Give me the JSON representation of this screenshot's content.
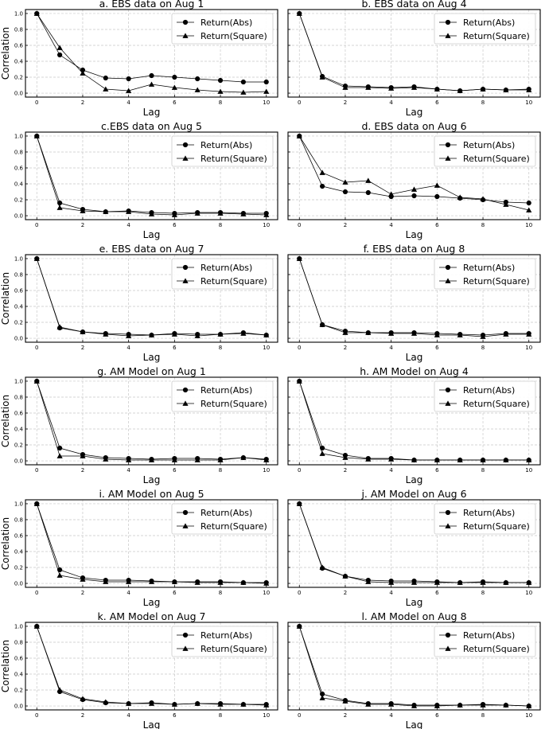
{
  "figure": {
    "x_tick_labels": [
      "0",
      "2",
      "4",
      "6",
      "8",
      "10"
    ],
    "y_tick_labels": [
      "0.0",
      "0.2",
      "0.4",
      "0.6",
      "0.8",
      "1.0"
    ]
  },
  "chart_data": [
    {
      "type": "line",
      "title": "a. EBS data on Aug 1",
      "xlabel": "Lag",
      "ylabel": "Correlation",
      "xlim": [
        0,
        10
      ],
      "ylim": [
        0,
        1
      ],
      "legend": "top-right",
      "x": [
        0,
        1,
        2,
        3,
        4,
        5,
        6,
        7,
        8,
        9,
        10
      ],
      "series": [
        {
          "name": "Return(Abs)",
          "marker": "circle",
          "values": [
            1.0,
            0.48,
            0.29,
            0.19,
            0.18,
            0.22,
            0.2,
            0.18,
            0.16,
            0.14,
            0.14
          ]
        },
        {
          "name": "Return(Square)",
          "marker": "triangle",
          "values": [
            1.0,
            0.57,
            0.25,
            0.05,
            0.03,
            0.11,
            0.07,
            0.04,
            0.02,
            0.01,
            0.02
          ]
        }
      ]
    },
    {
      "type": "line",
      "title": "b. EBS data on Aug 4",
      "xlabel": "Lag",
      "ylabel": "",
      "xlim": [
        0,
        10
      ],
      "ylim": [
        0,
        1
      ],
      "legend": "top-right",
      "x": [
        0,
        1,
        2,
        3,
        4,
        5,
        6,
        7,
        8,
        9,
        10
      ],
      "series": [
        {
          "name": "Return(Abs)",
          "marker": "circle",
          "values": [
            1.0,
            0.21,
            0.09,
            0.08,
            0.07,
            0.08,
            0.05,
            0.03,
            0.05,
            0.04,
            0.05
          ]
        },
        {
          "name": "Return(Square)",
          "marker": "triangle",
          "values": [
            1.0,
            0.2,
            0.07,
            0.07,
            0.06,
            0.07,
            0.05,
            0.03,
            0.05,
            0.04,
            0.04
          ]
        }
      ]
    },
    {
      "type": "line",
      "title": "c.EBS data on Aug 5",
      "xlabel": "Lag",
      "ylabel": "",
      "xlim": [
        0,
        10
      ],
      "ylim": [
        0,
        1
      ],
      "legend": "top-right",
      "x": [
        0,
        1,
        2,
        3,
        4,
        5,
        6,
        7,
        8,
        9,
        10
      ],
      "series": [
        {
          "name": "Return(Abs)",
          "marker": "circle",
          "values": [
            1.0,
            0.16,
            0.08,
            0.05,
            0.06,
            0.04,
            0.03,
            0.04,
            0.04,
            0.03,
            0.03
          ]
        },
        {
          "name": "Return(Square)",
          "marker": "triangle",
          "values": [
            1.0,
            0.1,
            0.06,
            0.05,
            0.05,
            0.02,
            0.01,
            0.03,
            0.03,
            0.02,
            0.01
          ]
        }
      ]
    },
    {
      "type": "line",
      "title": "d. EBS data on Aug 6",
      "xlabel": "Lag",
      "ylabel": "",
      "xlim": [
        0,
        10
      ],
      "ylim": [
        0,
        1
      ],
      "legend": "top-right",
      "x": [
        0,
        1,
        2,
        3,
        4,
        5,
        6,
        7,
        8,
        9,
        10
      ],
      "series": [
        {
          "name": "Return(Abs)",
          "marker": "circle",
          "values": [
            1.0,
            0.37,
            0.3,
            0.29,
            0.24,
            0.25,
            0.24,
            0.22,
            0.2,
            0.17,
            0.16
          ]
        },
        {
          "name": "Return(Square)",
          "marker": "triangle",
          "values": [
            1.0,
            0.54,
            0.42,
            0.44,
            0.27,
            0.33,
            0.38,
            0.23,
            0.21,
            0.14,
            0.07
          ]
        }
      ]
    },
    {
      "type": "line",
      "title": "e. EBS data on Aug 7",
      "xlabel": "Lag",
      "ylabel": "Correlation",
      "xlim": [
        0,
        10
      ],
      "ylim": [
        0,
        1
      ],
      "legend": "top-right",
      "x": [
        0,
        1,
        2,
        3,
        4,
        5,
        6,
        7,
        8,
        9,
        10
      ],
      "series": [
        {
          "name": "Return(Abs)",
          "marker": "circle",
          "values": [
            1.0,
            0.13,
            0.08,
            0.06,
            0.05,
            0.04,
            0.06,
            0.05,
            0.05,
            0.07,
            0.04
          ]
        },
        {
          "name": "Return(Square)",
          "marker": "triangle",
          "values": [
            1.0,
            0.14,
            0.08,
            0.05,
            0.03,
            0.04,
            0.05,
            0.03,
            0.05,
            0.06,
            0.04
          ]
        }
      ]
    },
    {
      "type": "line",
      "title": "f. EBS data on Aug 8",
      "xlabel": "Lag",
      "ylabel": "",
      "xlim": [
        0,
        10
      ],
      "ylim": [
        0,
        1
      ],
      "legend": "top-right",
      "x": [
        0,
        1,
        2,
        3,
        4,
        5,
        6,
        7,
        8,
        9,
        10
      ],
      "series": [
        {
          "name": "Return(Abs)",
          "marker": "circle",
          "values": [
            1.0,
            0.17,
            0.09,
            0.07,
            0.07,
            0.07,
            0.06,
            0.05,
            0.04,
            0.06,
            0.06
          ]
        },
        {
          "name": "Return(Square)",
          "marker": "triangle",
          "values": [
            1.0,
            0.17,
            0.07,
            0.07,
            0.06,
            0.06,
            0.04,
            0.04,
            0.02,
            0.05,
            0.05
          ]
        }
      ]
    },
    {
      "type": "line",
      "title": "g. AM Model on Aug 1",
      "xlabel": "Lag",
      "ylabel": "Correlation",
      "xlim": [
        0,
        10
      ],
      "ylim": [
        0,
        1
      ],
      "legend": "top-right",
      "x": [
        0,
        1,
        2,
        3,
        4,
        5,
        6,
        7,
        8,
        9,
        10
      ],
      "series": [
        {
          "name": "Return(Abs)",
          "marker": "circle",
          "values": [
            1.0,
            0.16,
            0.08,
            0.04,
            0.03,
            0.02,
            0.03,
            0.03,
            0.02,
            0.04,
            0.02
          ]
        },
        {
          "name": "Return(Square)",
          "marker": "triangle",
          "values": [
            1.0,
            0.06,
            0.06,
            0.02,
            0.01,
            0.01,
            0.01,
            0.01,
            0.01,
            0.04,
            0.01
          ]
        }
      ]
    },
    {
      "type": "line",
      "title": "h. AM Model on Aug 4",
      "xlabel": "Lag",
      "ylabel": "",
      "xlim": [
        0,
        10
      ],
      "ylim": [
        0,
        1
      ],
      "legend": "top-right",
      "x": [
        0,
        1,
        2,
        3,
        4,
        5,
        6,
        7,
        8,
        9,
        10
      ],
      "series": [
        {
          "name": "Return(Abs)",
          "marker": "circle",
          "values": [
            1.0,
            0.16,
            0.07,
            0.03,
            0.03,
            0.01,
            0.01,
            0.01,
            0.01,
            0.01,
            0.01
          ]
        },
        {
          "name": "Return(Square)",
          "marker": "triangle",
          "values": [
            1.0,
            0.09,
            0.04,
            0.02,
            0.02,
            0.01,
            0.01,
            0.01,
            0.01,
            0.01,
            0.01
          ]
        }
      ]
    },
    {
      "type": "line",
      "title": "i. AM Model on Aug 5",
      "xlabel": "Lag",
      "ylabel": "Correlation",
      "xlim": [
        0,
        10
      ],
      "ylim": [
        0,
        1
      ],
      "legend": "top-right",
      "x": [
        0,
        1,
        2,
        3,
        4,
        5,
        6,
        7,
        8,
        9,
        10
      ],
      "series": [
        {
          "name": "Return(Abs)",
          "marker": "circle",
          "values": [
            1.0,
            0.17,
            0.07,
            0.04,
            0.04,
            0.03,
            0.02,
            0.02,
            0.02,
            0.01,
            0.01
          ]
        },
        {
          "name": "Return(Square)",
          "marker": "triangle",
          "values": [
            1.0,
            0.1,
            0.05,
            0.02,
            0.02,
            0.02,
            0.02,
            0.01,
            0.01,
            0.01,
            0.0
          ]
        }
      ]
    },
    {
      "type": "line",
      "title": "j. AM Model on Aug 6",
      "xlabel": "Lag",
      "ylabel": "",
      "xlim": [
        0,
        10
      ],
      "ylim": [
        0,
        1
      ],
      "legend": "top-right",
      "x": [
        0,
        1,
        2,
        3,
        4,
        5,
        6,
        7,
        8,
        9,
        10
      ],
      "series": [
        {
          "name": "Return(Abs)",
          "marker": "circle",
          "values": [
            1.0,
            0.19,
            0.09,
            0.04,
            0.03,
            0.03,
            0.02,
            0.01,
            0.02,
            0.01,
            0.01
          ]
        },
        {
          "name": "Return(Square)",
          "marker": "triangle",
          "values": [
            1.0,
            0.2,
            0.09,
            0.02,
            0.01,
            0.01,
            0.01,
            0.01,
            0.01,
            0.01,
            0.01
          ]
        }
      ]
    },
    {
      "type": "line",
      "title": "k. AM Model on Aug 7",
      "xlabel": "Lag",
      "ylabel": "Correlation",
      "xlim": [
        0,
        10
      ],
      "ylim": [
        0,
        1
      ],
      "legend": "top-right",
      "x": [
        0,
        1,
        2,
        3,
        4,
        5,
        6,
        7,
        8,
        9,
        10
      ],
      "series": [
        {
          "name": "Return(Abs)",
          "marker": "circle",
          "values": [
            1.0,
            0.18,
            0.08,
            0.04,
            0.03,
            0.04,
            0.02,
            0.03,
            0.03,
            0.02,
            0.02
          ]
        },
        {
          "name": "Return(Square)",
          "marker": "triangle",
          "values": [
            1.0,
            0.2,
            0.09,
            0.05,
            0.03,
            0.03,
            0.02,
            0.03,
            0.02,
            0.02,
            0.01
          ]
        }
      ]
    },
    {
      "type": "line",
      "title": "l. AM Model on Aug 8",
      "xlabel": "Lag",
      "ylabel": "",
      "xlim": [
        0,
        10
      ],
      "ylim": [
        0,
        1
      ],
      "legend": "top-right",
      "x": [
        0,
        1,
        2,
        3,
        4,
        5,
        6,
        7,
        8,
        9,
        10
      ],
      "series": [
        {
          "name": "Return(Abs)",
          "marker": "circle",
          "values": [
            1.0,
            0.15,
            0.07,
            0.03,
            0.03,
            0.01,
            0.01,
            0.01,
            0.02,
            0.01,
            0.0
          ]
        },
        {
          "name": "Return(Square)",
          "marker": "triangle",
          "values": [
            1.0,
            0.1,
            0.06,
            0.02,
            0.02,
            0.0,
            0.0,
            0.01,
            0.01,
            0.01,
            0.0
          ]
        }
      ]
    }
  ]
}
